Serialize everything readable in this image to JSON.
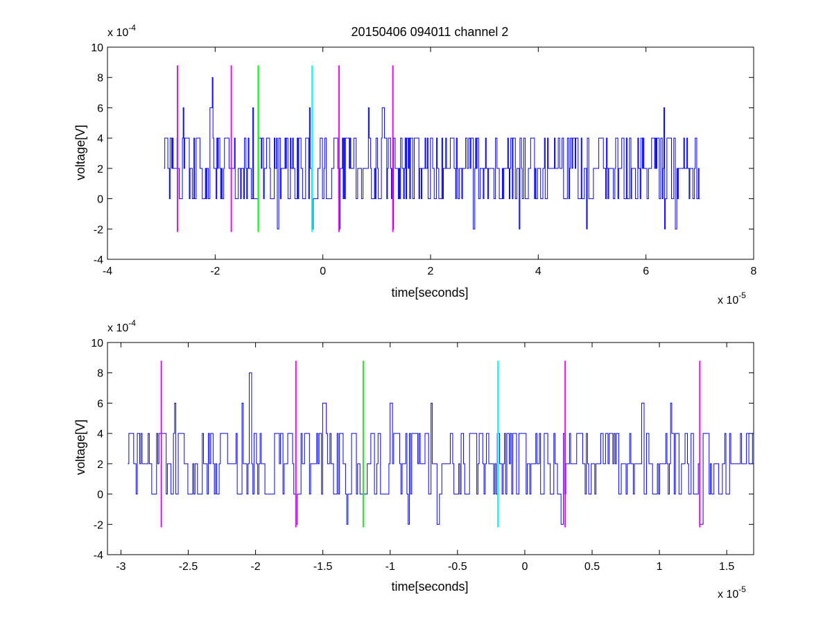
{
  "chart_data": [
    {
      "type": "line",
      "title": "20150406 094011 channel 2",
      "xlabel": "time[seconds]",
      "ylabel": "voltage[V]",
      "x_multiplier_label": "x 10",
      "x_multiplier_exp": "-5",
      "y_multiplier_label": "x 10",
      "y_multiplier_exp": "-4",
      "xlim": [
        -4,
        8
      ],
      "ylim": [
        -4,
        10
      ],
      "xticks": [
        "-4",
        "-2",
        "0",
        "2",
        "4",
        "6",
        "8"
      ],
      "yticks": [
        "-4",
        "-2",
        "0",
        "2",
        "4",
        "6",
        "8",
        "10"
      ],
      "signal": {
        "color": "#0000ff",
        "x_range": [
          -2.95,
          7.0
        ],
        "levels": [
          -2,
          0,
          2,
          4,
          6,
          8
        ],
        "baseline": 2,
        "peaks": [
          [
            -2.05,
            8
          ],
          [
            -2.6,
            6
          ],
          [
            -2.1,
            6
          ],
          [
            -1.3,
            6
          ],
          [
            -0.25,
            6
          ],
          [
            0.85,
            6
          ],
          [
            1.1,
            6
          ],
          [
            6.33,
            6
          ]
        ],
        "troughs": [
          [
            -1.3,
            -2
          ],
          [
            -0.85,
            -2
          ],
          [
            -0.2,
            -2
          ],
          [
            0.3,
            -2
          ],
          [
            1.3,
            -2
          ],
          [
            2.8,
            -2
          ],
          [
            3.65,
            -2
          ],
          [
            4.9,
            -2
          ],
          [
            6.35,
            -2
          ],
          [
            6.55,
            -2
          ]
        ]
      },
      "markers": [
        {
          "x": -2.7,
          "color": "#ff00ff"
        },
        {
          "x": -1.7,
          "color": "#ff00ff"
        },
        {
          "x": -1.2,
          "color": "#00ff00"
        },
        {
          "x": -0.2,
          "color": "#00ffff"
        },
        {
          "x": 0.3,
          "color": "#ff00ff"
        },
        {
          "x": 1.3,
          "color": "#ff00ff"
        }
      ],
      "marker_ylim": [
        -2.2,
        8.8
      ]
    },
    {
      "type": "line",
      "title": "",
      "xlabel": "time[seconds]",
      "ylabel": "voltage[V]",
      "x_multiplier_label": "x 10",
      "x_multiplier_exp": "-5",
      "y_multiplier_label": "x 10",
      "y_multiplier_exp": "-4",
      "xlim": [
        -3.1,
        1.7
      ],
      "ylim": [
        -4,
        10
      ],
      "xticks": [
        "-3",
        "-2.5",
        "-2",
        "-1.5",
        "-1",
        "-0.5",
        "0",
        "0.5",
        "1",
        "1.5"
      ],
      "xtick_values": [
        -3,
        -2.5,
        -2,
        -1.5,
        -1,
        -0.5,
        0,
        0.5,
        1,
        1.5
      ],
      "yticks": [
        "-4",
        "-2",
        "0",
        "2",
        "4",
        "6",
        "8",
        "10"
      ],
      "signal": {
        "color": "#0000ff",
        "x_range": [
          -2.95,
          1.7
        ],
        "levels": [
          -2,
          0,
          2,
          4,
          6,
          8
        ],
        "baseline": 2,
        "peaks": [
          [
            -2.05,
            8
          ],
          [
            -2.6,
            6
          ],
          [
            -2.1,
            6
          ],
          [
            -1.5,
            6
          ],
          [
            -1.0,
            6
          ],
          [
            -0.7,
            6
          ],
          [
            0.87,
            6
          ],
          [
            1.08,
            6
          ]
        ],
        "troughs": [
          [
            -1.7,
            -2
          ],
          [
            -1.32,
            -2
          ],
          [
            -0.87,
            -2
          ],
          [
            -0.65,
            -2
          ],
          [
            0.27,
            -2
          ],
          [
            1.3,
            -2
          ]
        ]
      },
      "markers": [
        {
          "x": -2.7,
          "color": "#ff00ff"
        },
        {
          "x": -1.7,
          "color": "#ff00ff"
        },
        {
          "x": -1.2,
          "color": "#00ff00"
        },
        {
          "x": -0.2,
          "color": "#00ffff"
        },
        {
          "x": 0.3,
          "color": "#ff00ff"
        },
        {
          "x": 1.3,
          "color": "#ff00ff"
        }
      ],
      "marker_ylim": [
        -2.2,
        8.8
      ]
    }
  ]
}
